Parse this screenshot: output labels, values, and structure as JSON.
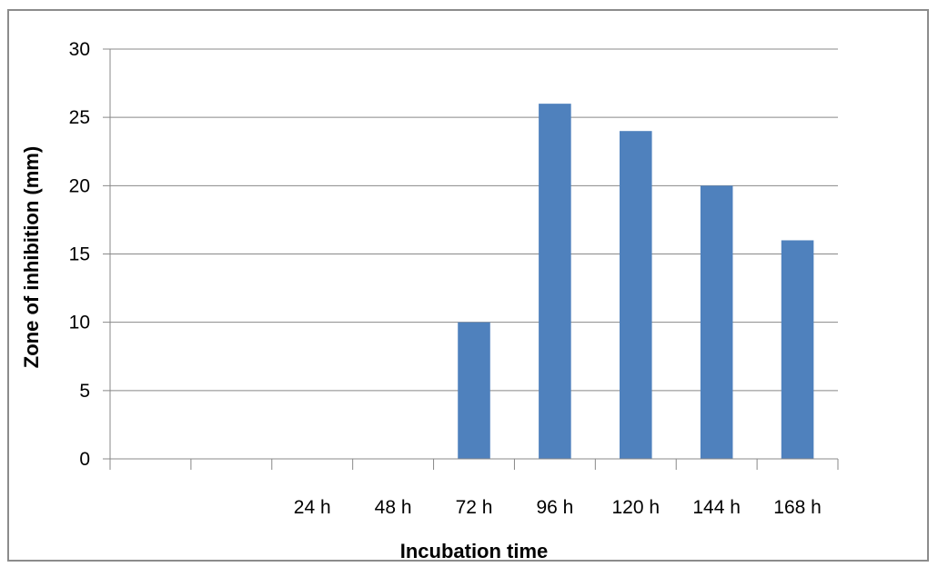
{
  "chart_data": {
    "type": "bar",
    "categories": [
      "",
      "",
      "24 h",
      "48 h",
      "72 h",
      "96 h",
      "120 h",
      "144 h",
      "168 h"
    ],
    "values": [
      0,
      0,
      0,
      0,
      10,
      26,
      24,
      20,
      16
    ],
    "xlabel": "Incubation time",
    "ylabel": "Zone of inhibition (mm)",
    "ylim": [
      0,
      30
    ],
    "yticks": [
      0,
      5,
      10,
      15,
      20,
      25,
      30
    ],
    "grid": true,
    "legend": "none",
    "bar_color": "#4f81bd"
  }
}
